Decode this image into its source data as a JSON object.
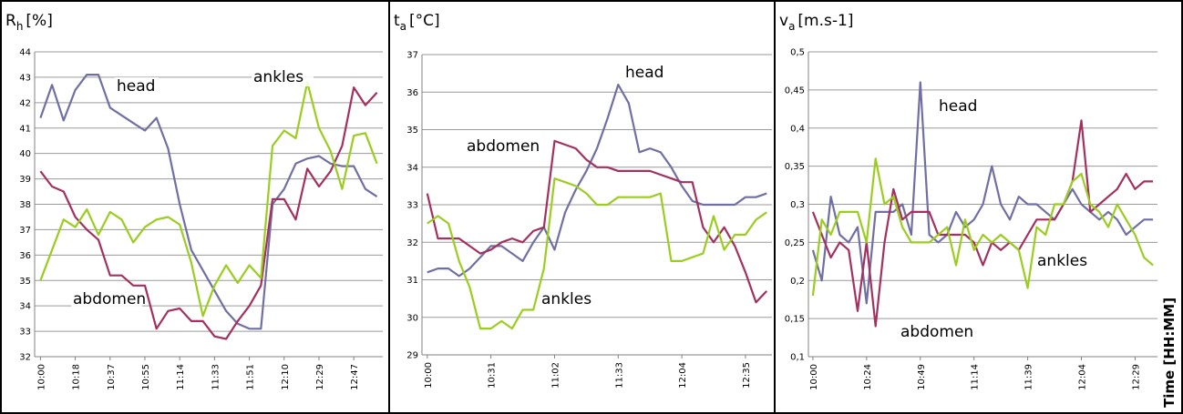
{
  "chart_data": [
    {
      "type": "line",
      "y_label": {
        "symbol": "R",
        "subscript": "h",
        "unit": "[%]"
      },
      "categories": [
        "10:00",
        null,
        null,
        "10:18",
        null,
        null,
        "10:37",
        null,
        null,
        "10:55",
        null,
        null,
        "11:14",
        null,
        null,
        "11:33",
        null,
        null,
        "11:51",
        null,
        null,
        "12:10",
        null,
        null,
        "12:29",
        null,
        null,
        "12:47",
        null,
        null
      ],
      "ylim": [
        32,
        44
      ],
      "yticks": [
        32,
        33,
        34,
        35,
        36,
        37,
        38,
        39,
        40,
        41,
        42,
        43,
        44
      ],
      "grid": true,
      "series": [
        {
          "name": "head",
          "color": "#6f6fa3",
          "values": [
            41.4,
            42.7,
            41.3,
            42.5,
            43.1,
            43.1,
            41.8,
            41.5,
            41.2,
            40.9,
            41.4,
            40.2,
            38.0,
            36.2,
            35.4,
            34.6,
            33.8,
            33.3,
            33.1,
            33.1,
            38.0,
            38.6,
            39.6,
            39.8,
            39.9,
            39.6,
            39.5,
            39.5,
            38.6,
            38.3
          ]
        },
        {
          "name": "abdomen",
          "color": "#a3305e",
          "values": [
            39.3,
            38.7,
            38.5,
            37.5,
            37.0,
            36.6,
            35.2,
            35.2,
            34.8,
            34.8,
            33.1,
            33.8,
            33.9,
            33.4,
            33.4,
            32.8,
            32.7,
            33.4,
            34.0,
            34.8,
            38.2,
            38.2,
            37.4,
            39.4,
            38.7,
            39.3,
            40.3,
            42.6,
            41.9,
            42.4
          ]
        },
        {
          "name": "ankles",
          "color": "#9acd1e",
          "values": [
            35.0,
            36.2,
            37.4,
            37.1,
            37.8,
            36.8,
            37.7,
            37.4,
            36.5,
            37.1,
            37.4,
            37.5,
            37.2,
            35.7,
            33.6,
            34.8,
            35.6,
            34.9,
            35.6,
            35.1,
            40.3,
            40.9,
            40.6,
            42.8,
            41.0,
            40.1,
            38.6,
            40.7,
            40.8,
            39.6
          ]
        }
      ]
    },
    {
      "type": "line",
      "y_label": {
        "symbol": "t",
        "subscript": "a",
        "unit": "[°C]"
      },
      "categories": [
        "10:00",
        null,
        null,
        null,
        null,
        null,
        "10:31",
        null,
        null,
        null,
        null,
        null,
        "11:02",
        null,
        null,
        null,
        null,
        null,
        "11:33",
        null,
        null,
        null,
        null,
        null,
        "12:04",
        null,
        null,
        null,
        null,
        null,
        "12:35",
        null,
        null
      ],
      "ylim": [
        29,
        37
      ],
      "yticks": [
        29,
        30,
        31,
        32,
        33,
        34,
        35,
        36,
        37
      ],
      "grid": true,
      "series": [
        {
          "name": "head",
          "color": "#6f6fa3",
          "values": [
            31.2,
            31.3,
            31.3,
            31.1,
            31.3,
            31.6,
            31.9,
            31.9,
            31.7,
            31.5,
            32.0,
            32.4,
            31.8,
            32.8,
            33.4,
            33.9,
            34.5,
            35.3,
            36.2,
            35.7,
            34.4,
            34.5,
            34.4,
            34.0,
            33.5,
            33.1,
            33.0,
            33.0,
            33.0,
            33.0,
            33.2,
            33.2,
            33.3
          ]
        },
        {
          "name": "abdomen",
          "color": "#a3305e",
          "values": [
            33.3,
            32.1,
            32.1,
            32.1,
            31.9,
            31.7,
            31.8,
            32.0,
            32.1,
            32.0,
            32.3,
            32.4,
            34.7,
            34.6,
            34.5,
            34.2,
            34.0,
            34.0,
            33.9,
            33.9,
            33.9,
            33.9,
            33.8,
            33.7,
            33.6,
            33.6,
            32.4,
            32.0,
            32.4,
            31.9,
            31.2,
            30.4,
            30.7
          ]
        },
        {
          "name": "ankles",
          "color": "#9acd1e",
          "values": [
            32.5,
            32.7,
            32.5,
            31.5,
            30.8,
            29.7,
            29.7,
            29.9,
            29.7,
            30.2,
            30.2,
            31.3,
            33.7,
            33.6,
            33.5,
            33.3,
            33.0,
            33.0,
            33.2,
            33.2,
            33.2,
            33.2,
            33.3,
            31.5,
            31.5,
            31.6,
            31.7,
            32.7,
            31.8,
            32.2,
            32.2,
            32.6,
            32.8
          ]
        }
      ]
    },
    {
      "type": "line",
      "y_label": {
        "symbol": "v",
        "subscript": "a",
        "unit": "[m.s-1]"
      },
      "x_label": "Time [HH:MM]",
      "categories": [
        "10:00",
        null,
        null,
        null,
        null,
        null,
        "10:24",
        null,
        null,
        null,
        null,
        null,
        "10:49",
        null,
        null,
        null,
        null,
        null,
        "11:14",
        null,
        null,
        null,
        null,
        null,
        "11:39",
        null,
        null,
        null,
        null,
        null,
        "12:04",
        null,
        null,
        null,
        null,
        null,
        "12:29",
        null,
        null
      ],
      "ylim": [
        0.1,
        0.5
      ],
      "yticks": [
        {
          "value": 0.1,
          "label": "0,1"
        },
        {
          "value": 0.15,
          "label": "0,15"
        },
        {
          "value": 0.2,
          "label": "0,2"
        },
        {
          "value": 0.25,
          "label": "0,25"
        },
        {
          "value": 0.3,
          "label": "0,3"
        },
        {
          "value": 0.35,
          "label": "0,35"
        },
        {
          "value": 0.4,
          "label": "0,4"
        },
        {
          "value": 0.45,
          "label": "0,45"
        },
        {
          "value": 0.5,
          "label": "0,5"
        }
      ],
      "grid": true,
      "series": [
        {
          "name": "head",
          "color": "#6f6fa3",
          "values": [
            0.24,
            0.2,
            0.31,
            0.26,
            0.25,
            0.27,
            0.17,
            0.29,
            0.29,
            0.29,
            0.3,
            0.26,
            0.46,
            0.26,
            0.25,
            0.26,
            0.29,
            0.27,
            0.28,
            0.3,
            0.35,
            0.3,
            0.28,
            0.31,
            0.3,
            0.3,
            0.29,
            0.28,
            0.3,
            0.32,
            0.3,
            0.29,
            0.28,
            0.29,
            0.28,
            0.26,
            0.27,
            0.28,
            0.28
          ]
        },
        {
          "name": "abdomen",
          "color": "#a3305e",
          "values": [
            0.29,
            0.26,
            0.23,
            0.25,
            0.24,
            0.16,
            0.25,
            0.14,
            0.25,
            0.32,
            0.28,
            0.29,
            0.29,
            0.29,
            0.26,
            0.26,
            0.26,
            0.26,
            0.25,
            0.22,
            0.25,
            0.24,
            0.25,
            0.24,
            0.26,
            0.28,
            0.28,
            0.28,
            0.3,
            0.33,
            0.41,
            0.29,
            0.3,
            0.31,
            0.32,
            0.34,
            0.32,
            0.33,
            0.33
          ]
        },
        {
          "name": "ankles",
          "color": "#9acd1e",
          "values": [
            0.18,
            0.28,
            0.26,
            0.29,
            0.29,
            0.29,
            0.25,
            0.36,
            0.3,
            0.31,
            0.27,
            0.25,
            0.25,
            0.25,
            0.26,
            0.27,
            0.22,
            0.28,
            0.24,
            0.26,
            0.25,
            0.26,
            0.25,
            0.24,
            0.19,
            0.27,
            0.26,
            0.3,
            0.3,
            0.33,
            0.34,
            0.3,
            0.29,
            0.27,
            0.3,
            0.28,
            0.26,
            0.23,
            0.22
          ]
        }
      ]
    }
  ]
}
